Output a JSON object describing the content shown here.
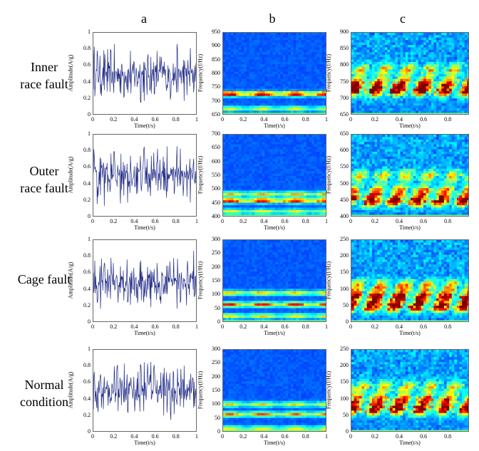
{
  "columns": [
    "a",
    "b",
    "c"
  ],
  "rows": [
    {
      "label_lines": [
        "Inner",
        "race fault"
      ],
      "a": {
        "ylabel": "Amplitude(A/g)",
        "xlabel": "Time(t/s)",
        "yticks": [
          "1",
          "0.8",
          "0.6",
          "0.4",
          "0.2",
          "0"
        ],
        "xticks": [
          "0",
          "0.2",
          "0.4",
          "0.6",
          "0.8",
          "1"
        ]
      },
      "b": {
        "ylabel": "Frequency(f/Hz)",
        "xlabel": "Time(t/s)",
        "yticks": [
          "950",
          "900",
          "850",
          "800",
          "750",
          "700",
          "650"
        ],
        "xticks": [
          "0",
          "0.2",
          "0.4",
          "0.6",
          "0.8",
          "1"
        ],
        "bands": [
          {
            "pos": 0.74,
            "intensity": 0.95
          },
          {
            "pos": 0.92,
            "intensity": 0.5
          }
        ]
      },
      "c": {
        "ylabel": "Frequency(f/Hz)",
        "xlabel": "Time(t/s)",
        "yticks": [
          "900",
          "850",
          "800",
          "750",
          "700",
          "650"
        ],
        "xticks": [
          "0",
          "0.2",
          "0.4",
          "0.6",
          "0.8"
        ],
        "bands": [
          {
            "pos": 0.7,
            "intensity": 1.0
          },
          {
            "pos": 0.6,
            "intensity": 0.7
          },
          {
            "pos": 0.45,
            "intensity": 0.55
          }
        ]
      }
    },
    {
      "label_lines": [
        "Outer",
        "race fault"
      ],
      "a": {
        "ylabel": "Amplitude(A/g)",
        "xlabel": "Time(t/s)",
        "yticks": [
          "1",
          "0.8",
          "0.6",
          "0.4",
          "0.2",
          "0"
        ],
        "xticks": [
          "0",
          "0.2",
          "0.4",
          "0.6",
          "0.8",
          "1"
        ]
      },
      "b": {
        "ylabel": "Frequency(f/Hz)",
        "xlabel": "Time(t/s)",
        "yticks": [
          "700",
          "650",
          "600",
          "550",
          "500",
          "450",
          "400"
        ],
        "xticks": [
          "0",
          "0.2",
          "0.4",
          "0.6",
          "0.8",
          "1"
        ],
        "bands": [
          {
            "pos": 0.8,
            "intensity": 0.9
          },
          {
            "pos": 0.72,
            "intensity": 0.6
          },
          {
            "pos": 0.93,
            "intensity": 0.5
          }
        ]
      },
      "c": {
        "ylabel": "Frequency(f/Hz)",
        "xlabel": "Time(t/s)",
        "yticks": [
          "650",
          "600",
          "550",
          "500",
          "450",
          "400"
        ],
        "xticks": [
          "0",
          "0.2",
          "0.4",
          "0.6",
          "0.8"
        ],
        "bands": [
          {
            "pos": 0.8,
            "intensity": 1.0
          },
          {
            "pos": 0.68,
            "intensity": 0.65
          },
          {
            "pos": 0.5,
            "intensity": 0.5
          }
        ]
      }
    },
    {
      "label_lines": [
        "Cage fault"
      ],
      "a": {
        "ylabel": "Amplitude(A/g)",
        "xlabel": "Time(t/s)",
        "yticks": [
          "1",
          "0.8",
          "0.6",
          "0.4",
          "0.2",
          "0"
        ],
        "xticks": [
          "0",
          "0.2",
          "0.4",
          "0.6",
          "0.8",
          "1"
        ]
      },
      "b": {
        "ylabel": "Frequency(f/Hz)",
        "xlabel": "Time(t/s)",
        "yticks": [
          "300",
          "250",
          "200",
          "150",
          "100",
          "50",
          "0"
        ],
        "xticks": [
          "0",
          "0.2",
          "0.4",
          "0.6",
          "0.8",
          "1"
        ],
        "bands": [
          {
            "pos": 0.78,
            "intensity": 0.8
          },
          {
            "pos": 0.64,
            "intensity": 0.6
          },
          {
            "pos": 0.92,
            "intensity": 0.55
          }
        ]
      },
      "c": {
        "ylabel": "Frequency(f/Hz)",
        "xlabel": "Time(t/s)",
        "yticks": [
          "250",
          "200",
          "150",
          "100",
          "50",
          "0"
        ],
        "xticks": [
          "0",
          "0.2",
          "0.4",
          "0.6",
          "0.8"
        ],
        "bands": [
          {
            "pos": 0.8,
            "intensity": 1.0
          },
          {
            "pos": 0.68,
            "intensity": 0.9
          },
          {
            "pos": 0.55,
            "intensity": 0.6
          }
        ]
      }
    },
    {
      "label_lines": [
        "Normal",
        "condition"
      ],
      "a": {
        "ylabel": "Amplitude(A/g)",
        "xlabel": "Time(t/s)",
        "yticks": [
          "1",
          "0.8",
          "0.6",
          "0.4",
          "0.2",
          "0"
        ],
        "xticks": [
          "0",
          "0.2",
          "0.4",
          "0.6",
          "0.8",
          "1"
        ]
      },
      "b": {
        "ylabel": "Frequency(f/Hz)",
        "xlabel": "Time(t/s)",
        "yticks": [
          "300",
          "250",
          "200",
          "150",
          "100",
          "50",
          "0"
        ],
        "xticks": [
          "0",
          "0.2",
          "0.4",
          "0.6",
          "0.8",
          "1"
        ],
        "bands": [
          {
            "pos": 0.78,
            "intensity": 0.7
          },
          {
            "pos": 0.66,
            "intensity": 0.55
          },
          {
            "pos": 0.95,
            "intensity": 0.5
          }
        ]
      },
      "c": {
        "ylabel": "Frequency(f/Hz)",
        "xlabel": "Time(t/s)",
        "yticks": [
          "250",
          "200",
          "150",
          "100",
          "50",
          "0"
        ],
        "xticks": [
          "0",
          "0.2",
          "0.4",
          "0.6",
          "0.8"
        ],
        "bands": [
          {
            "pos": 0.72,
            "intensity": 1.0
          },
          {
            "pos": 0.6,
            "intensity": 0.75
          },
          {
            "pos": 0.45,
            "intensity": 0.5
          }
        ]
      }
    }
  ]
}
